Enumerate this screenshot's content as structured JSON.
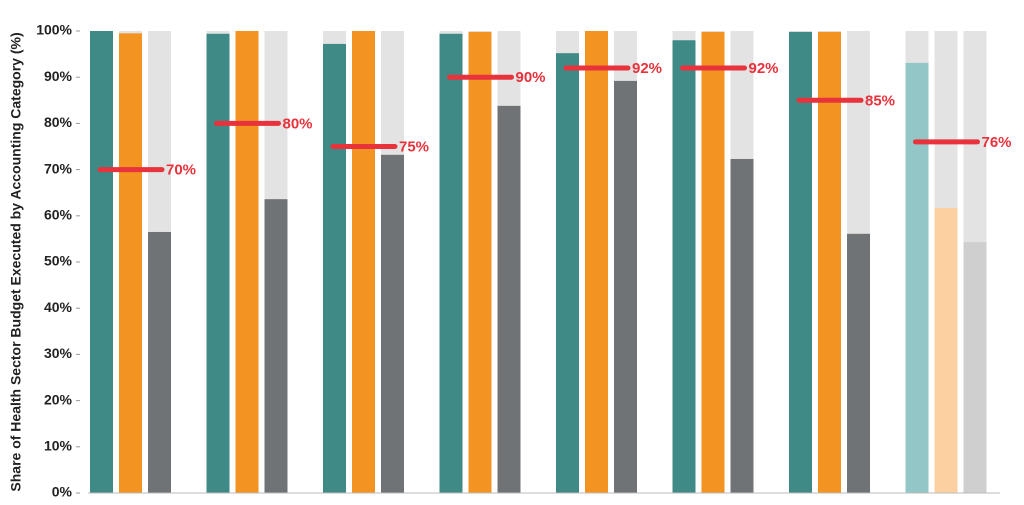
{
  "chart_data": {
    "type": "bar",
    "y_label": "Share of Health Sector Budget Executed by Accounting Category (%)",
    "categories": [
      null,
      null,
      null,
      null,
      null,
      null,
      null,
      null
    ],
    "series": [
      {
        "color": "#3f8a86",
        "colors": [
          "#3f8a86",
          "#3f8a86",
          "#3f8a86",
          "#3f8a86",
          "#3f8a86",
          "#3f8a86",
          "#3f8a86",
          "#93c6c6"
        ],
        "values": [
          100,
          99.4,
          97.2,
          99.4,
          95.2,
          98,
          99.8,
          93.1
        ]
      },
      {
        "color": "#f39322",
        "colors": [
          "#f39322",
          "#f39322",
          "#f39322",
          "#f39322",
          "#f39322",
          "#f39322",
          "#f39322",
          "#fdd0a2"
        ],
        "values": [
          99.5,
          100,
          100,
          99.8,
          100,
          99.8,
          99.8,
          61.7
        ]
      },
      {
        "color": "#6f7375",
        "colors": [
          "#6f7375",
          "#6f7375",
          "#6f7375",
          "#6f7375",
          "#6f7375",
          "#6f7375",
          "#6f7375",
          "#cfcfcf"
        ],
        "values": [
          56.5,
          63.6,
          73.2,
          83.8,
          89.2,
          72.3,
          56.1,
          54.3
        ]
      }
    ],
    "background_color": "#e3e3e3",
    "targets": {
      "color": "#e8323c",
      "values": [
        70,
        80,
        75,
        90,
        92,
        92,
        85,
        76
      ],
      "value_labels": [
        "70%",
        "80%",
        "75%",
        "90%",
        "92%",
        "92%",
        "85%",
        "76%"
      ]
    },
    "ylim": [
      0,
      100
    ],
    "yticks": [
      {
        "value": 0,
        "label": "0%"
      },
      {
        "value": 10,
        "label": "10%"
      },
      {
        "value": 20,
        "label": "20%"
      },
      {
        "value": 30,
        "label": "30%"
      },
      {
        "value": 40,
        "label": "40%"
      },
      {
        "value": 50,
        "label": "50%"
      },
      {
        "value": 60,
        "label": "60%"
      },
      {
        "value": 70,
        "label": "70%"
      },
      {
        "value": 80,
        "label": "80%"
      },
      {
        "value": 90,
        "label": "90%"
      },
      {
        "value": 100,
        "label": "100%"
      }
    ]
  }
}
